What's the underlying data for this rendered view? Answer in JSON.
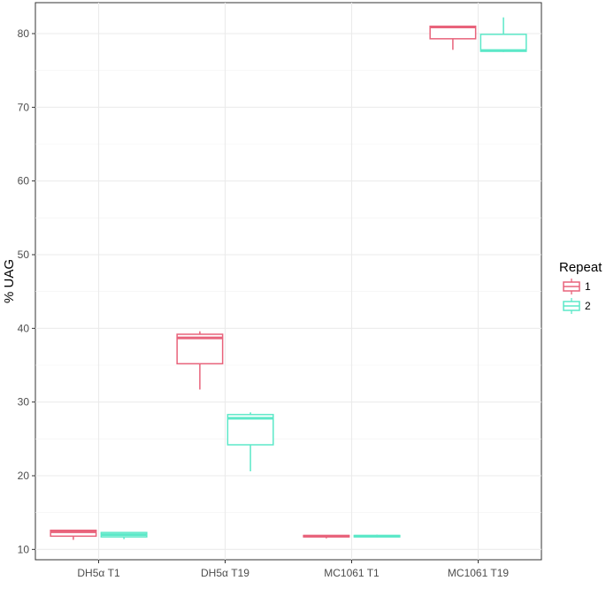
{
  "chart_data": {
    "type": "boxplot",
    "ylabel": "% UAG",
    "xlabel": "",
    "title": "",
    "categories": [
      "DH5α T1",
      "DH5α T19",
      "MC1061 T1",
      "MC1061 T19"
    ],
    "ylim": [
      8.6,
      84.2
    ],
    "yticks": [
      10,
      20,
      30,
      40,
      50,
      60,
      70,
      80
    ],
    "grid": true,
    "legend": {
      "title": "Repeat",
      "position": "right",
      "entries": [
        "1",
        "2"
      ]
    },
    "series": [
      {
        "name": "1",
        "color": "#e8637b",
        "boxes": [
          {
            "category": "DH5α T1",
            "min": 11.3,
            "q1": 11.8,
            "median": 12.4,
            "q3": 12.6,
            "max": 12.6
          },
          {
            "category": "DH5α T19",
            "min": 31.7,
            "q1": 35.2,
            "median": 38.7,
            "q3": 39.2,
            "max": 39.6
          },
          {
            "category": "MC1061 T1",
            "min": 11.5,
            "q1": 11.7,
            "median": 11.8,
            "q3": 11.9,
            "max": 11.9
          },
          {
            "category": "MC1061 T19",
            "min": 77.8,
            "q1": 79.3,
            "median": 80.9,
            "q3": 81.0,
            "max": 81.0
          }
        ]
      },
      {
        "name": "2",
        "color": "#5ce8c8",
        "boxes": [
          {
            "category": "DH5α T1",
            "min": 11.4,
            "q1": 11.7,
            "median": 12.0,
            "q3": 12.3,
            "max": 12.3
          },
          {
            "category": "DH5α T19",
            "min": 20.6,
            "q1": 24.2,
            "median": 27.8,
            "q3": 28.3,
            "max": 28.6
          },
          {
            "category": "MC1061 T1",
            "min": 11.6,
            "q1": 11.7,
            "median": 11.8,
            "q3": 11.9,
            "max": 12.0
          },
          {
            "category": "MC1061 T19",
            "min": 77.5,
            "q1": 77.6,
            "median": 77.7,
            "q3": 79.9,
            "max": 82.2
          }
        ]
      }
    ]
  }
}
